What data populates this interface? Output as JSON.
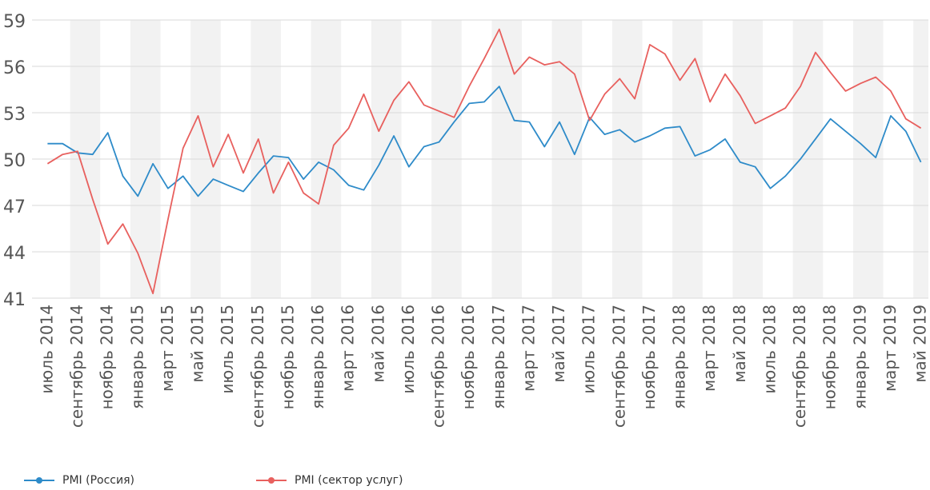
{
  "chart_data": {
    "type": "line",
    "title": "",
    "xlabel": "",
    "ylabel": "",
    "ylim": [
      41,
      59
    ],
    "yticks": [
      41,
      44,
      47,
      50,
      53,
      56,
      59
    ],
    "grid": true,
    "legend_position": "bottom-left",
    "x": [
      "июль 2014",
      "август 2014",
      "сентябрь 2014",
      "октябрь 2014",
      "ноябрь 2014",
      "декабрь 2014",
      "январь 2015",
      "февраль 2015",
      "март 2015",
      "апрель 2015",
      "май 2015",
      "июнь 2015",
      "июль 2015",
      "август 2015",
      "сентябрь 2015",
      "октябрь 2015",
      "ноябрь 2015",
      "декабрь 2015",
      "январь 2016",
      "февраль 2016",
      "март 2016",
      "апрель 2016",
      "май 2016",
      "июнь 2016",
      "июль 2016",
      "август 2016",
      "сентябрь 2016",
      "октябрь 2016",
      "ноябрь 2016",
      "декабрь 2016",
      "январь 2017",
      "февраль 2017",
      "март 2017",
      "апрель 2017",
      "май 2017",
      "июнь 2017",
      "июль 2017",
      "август 2017",
      "сентябрь 2017",
      "октябрь 2017",
      "ноябрь 2017",
      "декабрь 2017",
      "январь 2018",
      "февраль 2018",
      "март 2018",
      "апрель 2018",
      "май 2018",
      "июнь 2018",
      "июль 2018",
      "август 2018",
      "сентябрь 2018",
      "октябрь 2018",
      "ноябрь 2018",
      "декабрь 2018",
      "январь 2019",
      "февраль 2019",
      "март 2019",
      "апрель 2019",
      "май 2019"
    ],
    "xtick_labels": [
      "июль 2014",
      "сентябрь 2014",
      "ноябрь 2014",
      "январь 2015",
      "март 2015",
      "май 2015",
      "июль 2015",
      "сентябрь 2015",
      "ноябрь 2015",
      "январь 2016",
      "март 2016",
      "май 2016",
      "июль 2016",
      "сентябрь 2016",
      "ноябрь 2016",
      "январь 2017",
      "март 2017",
      "май 2017",
      "июль 2017",
      "сентябрь 2017",
      "ноябрь 2017",
      "январь 2018",
      "март 2018",
      "май 2018",
      "июль 2018",
      "сентябрь 2018",
      "ноябрь 2018",
      "январь 2019",
      "март 2019",
      "май 2019"
    ],
    "series": [
      {
        "name": "PMI (Россия)",
        "color": "#2e8bc9",
        "values": [
          51.0,
          51.0,
          50.4,
          50.3,
          51.7,
          48.9,
          47.6,
          49.7,
          48.1,
          48.9,
          47.6,
          48.7,
          48.3,
          47.9,
          49.1,
          50.2,
          50.1,
          48.7,
          49.8,
          49.3,
          48.3,
          48.0,
          49.6,
          51.5,
          49.5,
          50.8,
          51.1,
          52.4,
          53.6,
          53.7,
          54.7,
          52.5,
          52.4,
          50.8,
          52.4,
          50.3,
          52.7,
          51.6,
          51.9,
          51.1,
          51.5,
          52.0,
          52.1,
          50.2,
          50.6,
          51.3,
          49.8,
          49.5,
          48.1,
          48.9,
          50.0,
          51.3,
          52.6,
          51.8,
          51.0,
          50.1,
          52.8,
          51.8,
          49.8
        ]
      },
      {
        "name": "PMI (сектор услуг)",
        "color": "#e8605e",
        "values": [
          49.7,
          50.3,
          50.5,
          47.4,
          44.5,
          45.8,
          43.9,
          41.3,
          46.1,
          50.7,
          52.8,
          49.5,
          51.6,
          49.1,
          51.3,
          47.8,
          49.8,
          47.8,
          47.1,
          50.9,
          52.0,
          54.2,
          51.8,
          53.8,
          55.0,
          53.5,
          53.1,
          52.7,
          54.7,
          56.5,
          58.4,
          55.5,
          56.6,
          56.1,
          56.3,
          55.5,
          52.5,
          54.2,
          55.2,
          53.9,
          57.4,
          56.8,
          55.1,
          56.5,
          53.7,
          55.5,
          54.1,
          52.3,
          52.8,
          53.3,
          54.7,
          56.9,
          55.6,
          54.4,
          54.9,
          55.3,
          54.4,
          52.6,
          52.0
        ]
      }
    ]
  }
}
